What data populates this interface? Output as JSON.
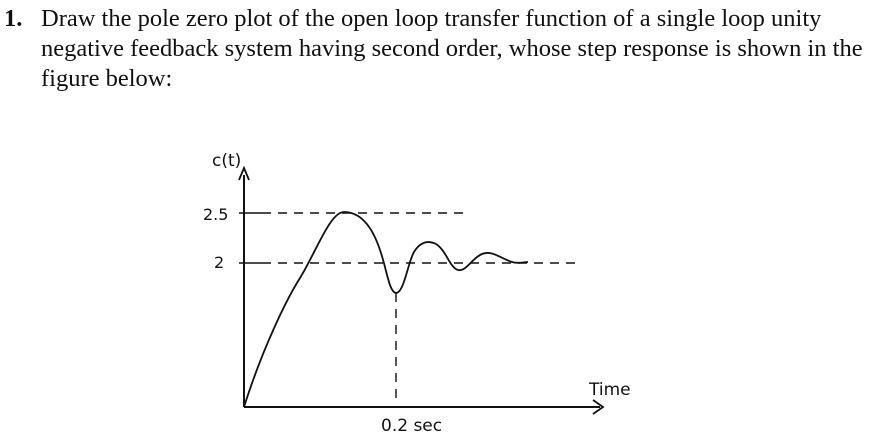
{
  "question": {
    "number": "1.",
    "text": "Draw the pole zero plot of the open loop transfer function of a single loop unity negative feedback system having second order, whose step response is shown in the figure below:"
  },
  "figure": {
    "y_axis_label": "c(t)",
    "x_axis_label": "Time",
    "ticks": {
      "y_peak": "2.5",
      "y_final": "2",
      "x_peak_time": "0.2 sec"
    }
  }
}
